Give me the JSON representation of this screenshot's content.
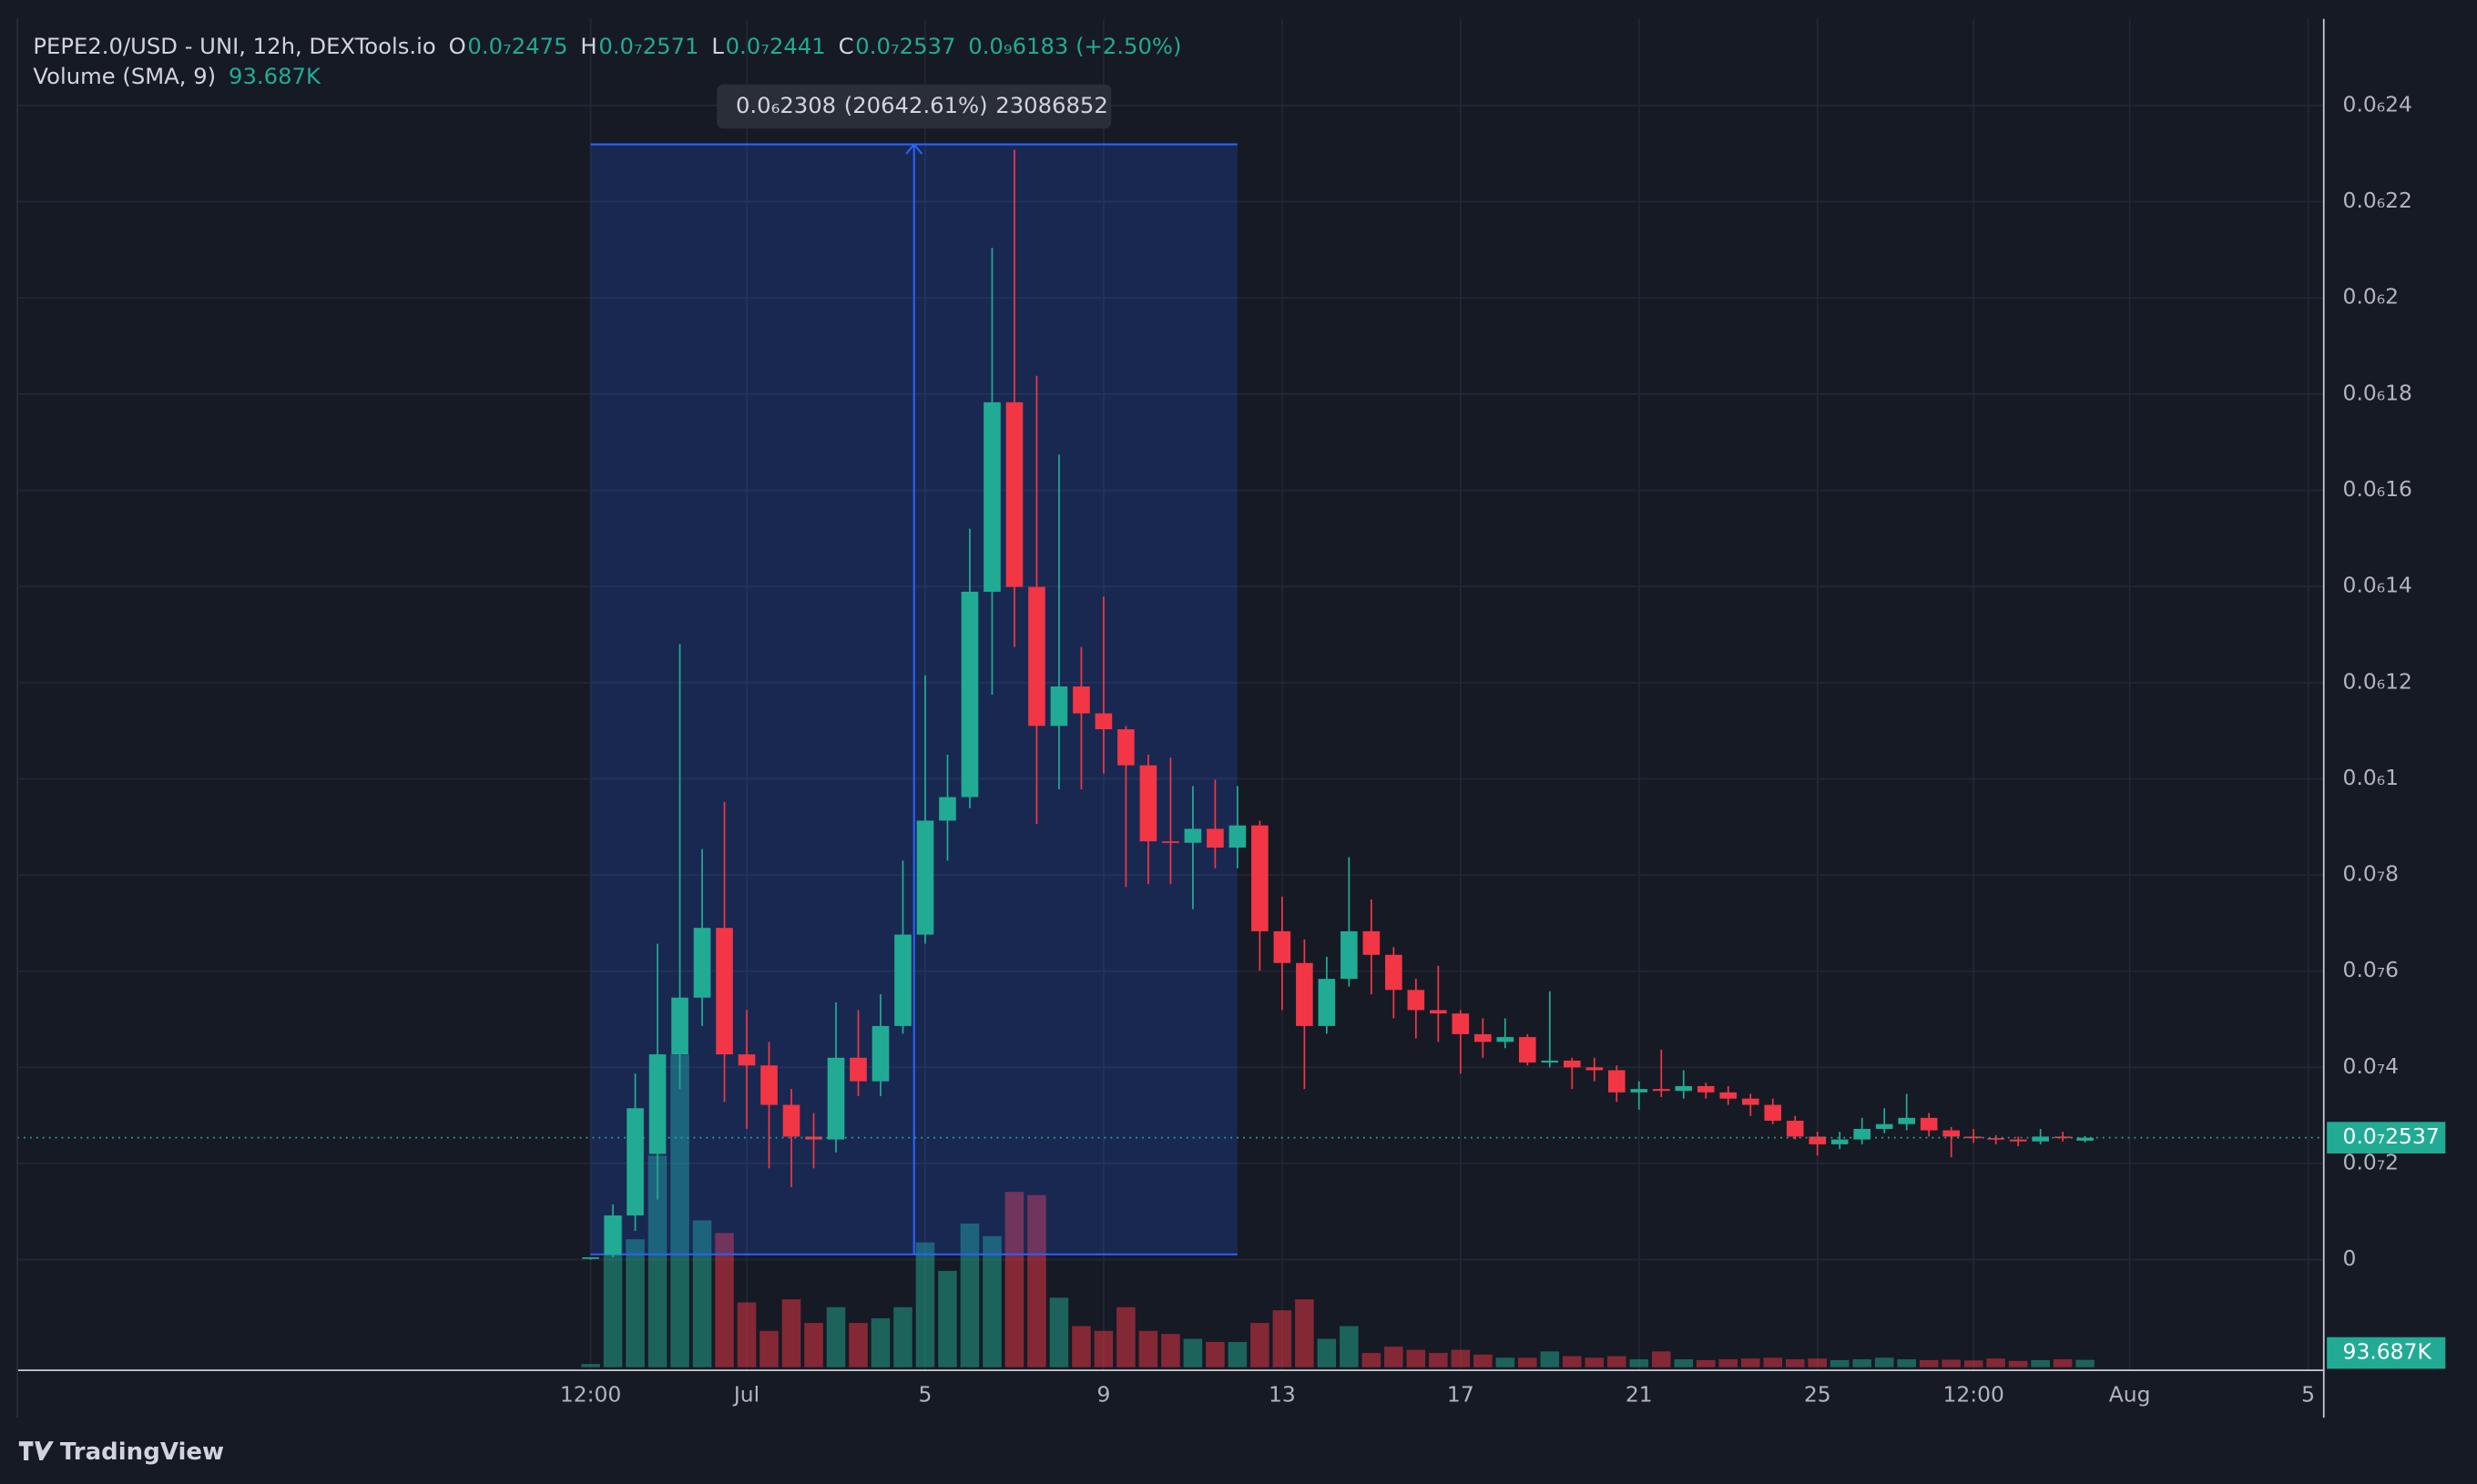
{
  "chart_data": {
    "type": "candlestick",
    "title": "PEPE2.0/USD - UNI, 12h, DEXTools.io",
    "header_ohlc": [
      {
        "name": "O",
        "label": "0.0₇2475"
      },
      {
        "name": "H",
        "label": "0.0₇2571"
      },
      {
        "name": "L",
        "label": "0.0₇2441"
      },
      {
        "name": "C",
        "label": "0.0₇2537"
      }
    ],
    "change_label": "0.0₉6183 (+2.50%)",
    "up_color": "#22ab94",
    "down_color": "#f23645",
    "x": [
      0,
      1,
      2,
      3,
      4,
      5,
      6,
      7,
      8,
      9,
      10,
      11,
      12,
      13,
      14,
      15,
      16,
      17,
      18,
      19,
      20,
      21,
      22,
      23,
      24,
      25,
      26,
      27,
      28,
      29,
      30,
      31,
      32,
      33,
      34,
      35,
      36,
      37,
      38,
      39,
      40,
      41,
      42,
      43,
      44,
      45,
      46,
      47,
      48,
      49,
      50,
      51,
      52,
      53,
      54,
      55,
      56,
      57,
      58,
      59,
      60,
      61,
      62,
      63,
      64,
      65,
      66,
      67
    ],
    "open": [
      3e-10,
      1e-09,
      9.2e-09,
      2.2e-08,
      4.27e-08,
      5.45e-08,
      6.9e-08,
      4.27e-08,
      4.04e-08,
      3.22e-08,
      2.56e-08,
      2.5e-08,
      4.2e-08,
      3.71e-08,
      4.86e-08,
      6.76e-08,
      9.13e-08,
      9.62e-08,
      1.389e-07,
      1.783e-07,
      1.399e-07,
      1.11e-07,
      1.192e-07,
      1.136e-07,
      1.103e-07,
      1.028e-07,
      8.7e-08,
      8.67e-08,
      8.96e-08,
      8.57e-08,
      9.03e-08,
      6.83e-08,
      6.17e-08,
      4.86e-08,
      5.84e-08,
      6.83e-08,
      6.34e-08,
      5.61e-08,
      5.19e-08,
      5.12e-08,
      4.69e-08,
      4.53e-08,
      4.63e-08,
      4.1e-08,
      4.14e-08,
      4e-08,
      3.94e-08,
      3.48e-08,
      3.55e-08,
      3.51e-08,
      3.61e-08,
      3.48e-08,
      3.35e-08,
      3.22e-08,
      2.89e-08,
      2.56e-08,
      2.4e-08,
      2.5e-08,
      2.72e-08,
      2.82e-08,
      2.95e-08,
      2.69e-08,
      2.56e-08,
      2.53e-08,
      2.5e-08,
      2.46e-08,
      2.56e-08,
      2.475e-08
    ],
    "high": [
      5e-10,
      1.15e-08,
      3.87e-08,
      6.57e-08,
      1.28e-07,
      8.54e-08,
      9.52e-08,
      5.19e-08,
      4.53e-08,
      3.55e-08,
      3.05e-08,
      5.35e-08,
      5.19e-08,
      5.52e-08,
      8.3e-08,
      1.215e-07,
      1.05e-07,
      1.52e-07,
      2.104e-07,
      2.308e-07,
      1.838e-07,
      1.674e-07,
      1.274e-07,
      1.379e-07,
      1.11e-07,
      1.05e-07,
      1.044e-07,
      9.85e-08,
      9.98e-08,
      9.85e-08,
      9.13e-08,
      7.55e-08,
      6.66e-08,
      6.3e-08,
      8.37e-08,
      7.49e-08,
      6.5e-08,
      5.84e-08,
      6.11e-08,
      5.19e-08,
      5.02e-08,
      5.02e-08,
      4.69e-08,
      5.58e-08,
      4.2e-08,
      4.2e-08,
      4.04e-08,
      3.71e-08,
      4.37e-08,
      3.94e-08,
      3.68e-08,
      3.61e-08,
      3.45e-08,
      3.35e-08,
      2.99e-08,
      2.66e-08,
      2.66e-08,
      2.95e-08,
      3.15e-08,
      3.45e-08,
      3.05e-08,
      2.76e-08,
      2.72e-08,
      2.59e-08,
      2.56e-08,
      2.72e-08,
      2.66e-08,
      2.571e-08
    ],
    "low": [
      0,
      5e-10,
      6e-09,
      1.25e-08,
      3.55e-08,
      4.86e-08,
      3.28e-08,
      2.72e-08,
      1.9e-08,
      1.51e-08,
      1.9e-08,
      2.23e-08,
      3.4e-08,
      3.4e-08,
      4.7e-08,
      6.57e-08,
      8.3e-08,
      9.39e-08,
      1.175e-07,
      1.274e-07,
      9.06e-08,
      9.78e-08,
      9.78e-08,
      1.011e-07,
      7.75e-08,
      7.81e-08,
      7.81e-08,
      7.29e-08,
      8.14e-08,
      8.14e-08,
      6.01e-08,
      5.19e-08,
      3.55e-08,
      4.7e-08,
      5.68e-08,
      5.52e-08,
      5.02e-08,
      4.6e-08,
      4.53e-08,
      3.87e-08,
      4.2e-08,
      4.4e-08,
      4.04e-08,
      4e-08,
      3.55e-08,
      3.71e-08,
      3.28e-08,
      3.12e-08,
      3.38e-08,
      3.35e-08,
      3.35e-08,
      3.22e-08,
      2.99e-08,
      2.82e-08,
      2.5e-08,
      2.17e-08,
      2.3e-08,
      2.4e-08,
      2.63e-08,
      2.69e-08,
      2.56e-08,
      2.13e-08,
      2.43e-08,
      2.4e-08,
      2.36e-08,
      2.4e-08,
      2.46e-08,
      2.441e-08
    ],
    "close": [
      5e-10,
      9.2e-09,
      3.15e-08,
      4.27e-08,
      5.45e-08,
      6.9e-08,
      4.27e-08,
      4.04e-08,
      3.22e-08,
      2.56e-08,
      2.5e-08,
      4.2e-08,
      3.71e-08,
      4.86e-08,
      6.76e-08,
      9.13e-08,
      9.62e-08,
      1.389e-07,
      1.783e-07,
      1.399e-07,
      1.11e-07,
      1.192e-07,
      1.136e-07,
      1.103e-07,
      1.028e-07,
      8.7e-08,
      8.67e-08,
      8.96e-08,
      8.57e-08,
      9.03e-08,
      6.83e-08,
      6.17e-08,
      4.86e-08,
      5.84e-08,
      6.83e-08,
      6.34e-08,
      5.61e-08,
      5.19e-08,
      5.12e-08,
      4.69e-08,
      4.53e-08,
      4.63e-08,
      4.1e-08,
      4.14e-08,
      4e-08,
      3.94e-08,
      3.48e-08,
      3.55e-08,
      3.51e-08,
      3.61e-08,
      3.48e-08,
      3.35e-08,
      3.22e-08,
      2.89e-08,
      2.56e-08,
      2.4e-08,
      2.5e-08,
      2.72e-08,
      2.82e-08,
      2.95e-08,
      2.69e-08,
      2.56e-08,
      2.53e-08,
      2.5e-08,
      2.46e-08,
      2.56e-08,
      2.53e-08,
      2.537e-08
    ],
    "volume": {
      "name": "Volume (SMA, 9)",
      "values": [
        40000,
        1920000,
        1620000,
        2680000,
        3960000,
        1860000,
        1700000,
        820000,
        460000,
        860000,
        560000,
        760000,
        560000,
        620000,
        760000,
        1580000,
        1220000,
        1820000,
        1660000,
        2220000,
        2180000,
        880000,
        520000,
        460000,
        760000,
        460000,
        420000,
        360000,
        320000,
        320000,
        560000,
        720000,
        860000,
        360000,
        520000,
        180000,
        260000,
        220000,
        180000,
        220000,
        160000,
        120000,
        120000,
        200000,
        140000,
        120000,
        140000,
        100000,
        200000,
        100000,
        90000,
        100000,
        110000,
        120000,
        100000,
        110000,
        90000,
        100000,
        120000,
        100000,
        90000,
        95000,
        85000,
        110000,
        80000,
        90000,
        100000,
        93183
      ],
      "sma": {
        "value": 93687,
        "label": "93.687K"
      },
      "ylim": [
        0,
        4000000
      ]
    },
    "measure": {
      "x": [
        0,
        29
      ],
      "change": {
        "value": 2.308e-07,
        "label": "0.0₆2308"
      },
      "percent": {
        "value": 20642.61,
        "label": "(20642.61%)"
      },
      "volume": 23086852
    },
    "xlim": [
      -25.7,
      77.7
    ],
    "xticks": [
      {
        "value": 0,
        "label": "12:00"
      },
      {
        "value": 7,
        "label": "Jul"
      },
      {
        "value": 15,
        "label": "5"
      },
      {
        "value": 23,
        "label": "9"
      },
      {
        "value": 31,
        "label": "13"
      },
      {
        "value": 39,
        "label": "17"
      },
      {
        "value": 47,
        "label": "21"
      },
      {
        "value": 55,
        "label": "25"
      },
      {
        "value": 62,
        "label": "12:00"
      },
      {
        "value": 69,
        "label": "Aug"
      },
      {
        "value": 77,
        "label": "5"
      }
    ],
    "ylim": [
      -2.3e-08,
      2.58e-07
    ],
    "yticks": [
      0,
      {
        "value": 2e-08,
        "label": "0.0₇2"
      },
      {
        "value": 4e-08,
        "label": "0.0₇4"
      },
      {
        "value": 6e-08,
        "label": "0.0₇6"
      },
      {
        "value": 8e-08,
        "label": "0.0₇8"
      },
      {
        "value": 1e-07,
        "label": "0.0₆1"
      },
      {
        "value": 1.2e-07,
        "label": "0.0₆12"
      },
      {
        "value": 1.4e-07,
        "label": "0.0₆14"
      },
      {
        "value": 1.6e-07,
        "label": "0.0₆16"
      },
      {
        "value": 1.8e-07,
        "label": "0.0₆18"
      },
      {
        "value": 2e-07,
        "label": "0.0₆2"
      },
      {
        "value": 2.2e-07,
        "label": "0.0₆22"
      },
      {
        "value": 2.4e-07,
        "label": "0.0₆24"
      }
    ],
    "grid": true,
    "watermark": "TradingView"
  }
}
